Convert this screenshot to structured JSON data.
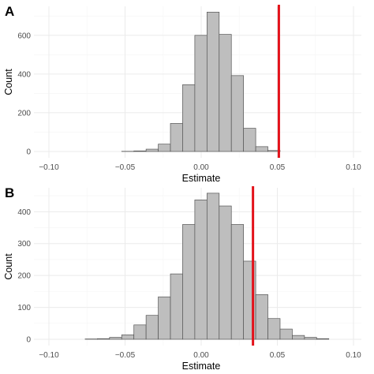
{
  "chart_data": [
    {
      "type": "bar",
      "panel": "A",
      "xlabel": "Estimate",
      "ylabel": "Count",
      "xlim": [
        -0.1,
        0.1
      ],
      "ylim": [
        0,
        750
      ],
      "x_ticks": [
        -0.1,
        -0.05,
        0.0,
        0.05,
        0.1
      ],
      "x_tick_labels": [
        "−0.10",
        "−0.05",
        "0.00",
        "0.05",
        "0.10"
      ],
      "y_ticks": [
        0,
        200,
        400,
        600
      ],
      "y_tick_labels": [
        "0",
        "200",
        "400",
        "600"
      ],
      "bins": [
        {
          "x0": -0.0922,
          "x1": -0.0842,
          "count": 0
        },
        {
          "x0": -0.0842,
          "x1": -0.0762,
          "count": 0
        },
        {
          "x0": -0.0762,
          "x1": -0.0682,
          "count": 0
        },
        {
          "x0": -0.0682,
          "x1": -0.0602,
          "count": 0
        },
        {
          "x0": -0.0602,
          "x1": -0.0522,
          "count": 0
        },
        {
          "x0": -0.0522,
          "x1": -0.0442,
          "count": 1
        },
        {
          "x0": -0.0442,
          "x1": -0.0362,
          "count": 3
        },
        {
          "x0": -0.0362,
          "x1": -0.0282,
          "count": 12
        },
        {
          "x0": -0.0282,
          "x1": -0.0202,
          "count": 38
        },
        {
          "x0": -0.0202,
          "x1": -0.0122,
          "count": 145
        },
        {
          "x0": -0.0122,
          "x1": -0.0042,
          "count": 345
        },
        {
          "x0": -0.0042,
          "x1": 0.0038,
          "count": 600
        },
        {
          "x0": 0.0038,
          "x1": 0.0118,
          "count": 720
        },
        {
          "x0": 0.0118,
          "x1": 0.0198,
          "count": 605
        },
        {
          "x0": 0.0198,
          "x1": 0.0278,
          "count": 392
        },
        {
          "x0": 0.0278,
          "x1": 0.0358,
          "count": 120
        },
        {
          "x0": 0.0358,
          "x1": 0.0438,
          "count": 25
        },
        {
          "x0": 0.0438,
          "x1": 0.0518,
          "count": 5
        },
        {
          "x0": 0.0518,
          "x1": 0.0598,
          "count": 0
        },
        {
          "x0": 0.0598,
          "x1": 0.0678,
          "count": 0
        },
        {
          "x0": 0.0678,
          "x1": 0.0758,
          "count": 0
        },
        {
          "x0": 0.0758,
          "x1": 0.0838,
          "count": 0
        },
        {
          "x0": 0.0838,
          "x1": 0.0918,
          "count": 0
        },
        {
          "x0": 0.0918,
          "x1": 0.0938,
          "count": 0
        }
      ],
      "reference_line": {
        "x": 0.051,
        "color": "#e3121a"
      }
    },
    {
      "type": "bar",
      "panel": "B",
      "xlabel": "Estimate",
      "ylabel": "Count",
      "xlim": [
        -0.1,
        0.1
      ],
      "ylim": [
        0,
        475
      ],
      "x_ticks": [
        -0.1,
        -0.05,
        0.0,
        0.05,
        0.1
      ],
      "x_tick_labels": [
        "−0.10",
        "−0.05",
        "0.00",
        "0.05",
        "0.10"
      ],
      "y_ticks": [
        0,
        100,
        200,
        300,
        400
      ],
      "y_tick_labels": [
        "0",
        "100",
        "200",
        "300",
        "400"
      ],
      "bins": [
        {
          "x0": -0.0922,
          "x1": -0.0842,
          "count": 0
        },
        {
          "x0": -0.0842,
          "x1": -0.0762,
          "count": 0
        },
        {
          "x0": -0.0762,
          "x1": -0.0682,
          "count": 1
        },
        {
          "x0": -0.0682,
          "x1": -0.0602,
          "count": 2
        },
        {
          "x0": -0.0602,
          "x1": -0.0522,
          "count": 6
        },
        {
          "x0": -0.0522,
          "x1": -0.0442,
          "count": 14
        },
        {
          "x0": -0.0442,
          "x1": -0.0362,
          "count": 45
        },
        {
          "x0": -0.0362,
          "x1": -0.0282,
          "count": 75
        },
        {
          "x0": -0.0282,
          "x1": -0.0202,
          "count": 133
        },
        {
          "x0": -0.0202,
          "x1": -0.0122,
          "count": 205
        },
        {
          "x0": -0.0122,
          "x1": -0.0042,
          "count": 360
        },
        {
          "x0": -0.0042,
          "x1": 0.0038,
          "count": 437
        },
        {
          "x0": 0.0038,
          "x1": 0.0118,
          "count": 458
        },
        {
          "x0": 0.0118,
          "x1": 0.0198,
          "count": 418
        },
        {
          "x0": 0.0198,
          "x1": 0.0278,
          "count": 360
        },
        {
          "x0": 0.0278,
          "x1": 0.0358,
          "count": 245
        },
        {
          "x0": 0.0358,
          "x1": 0.0438,
          "count": 140
        },
        {
          "x0": 0.0438,
          "x1": 0.0518,
          "count": 65
        },
        {
          "x0": 0.0518,
          "x1": 0.0598,
          "count": 32
        },
        {
          "x0": 0.0598,
          "x1": 0.0678,
          "count": 12
        },
        {
          "x0": 0.0678,
          "x1": 0.0758,
          "count": 6
        },
        {
          "x0": 0.0758,
          "x1": 0.0838,
          "count": 2
        },
        {
          "x0": 0.0838,
          "x1": 0.0918,
          "count": 0
        },
        {
          "x0": 0.0918,
          "x1": 0.0938,
          "count": 0
        }
      ],
      "reference_line": {
        "x": 0.034,
        "color": "#e3121a"
      }
    }
  ]
}
